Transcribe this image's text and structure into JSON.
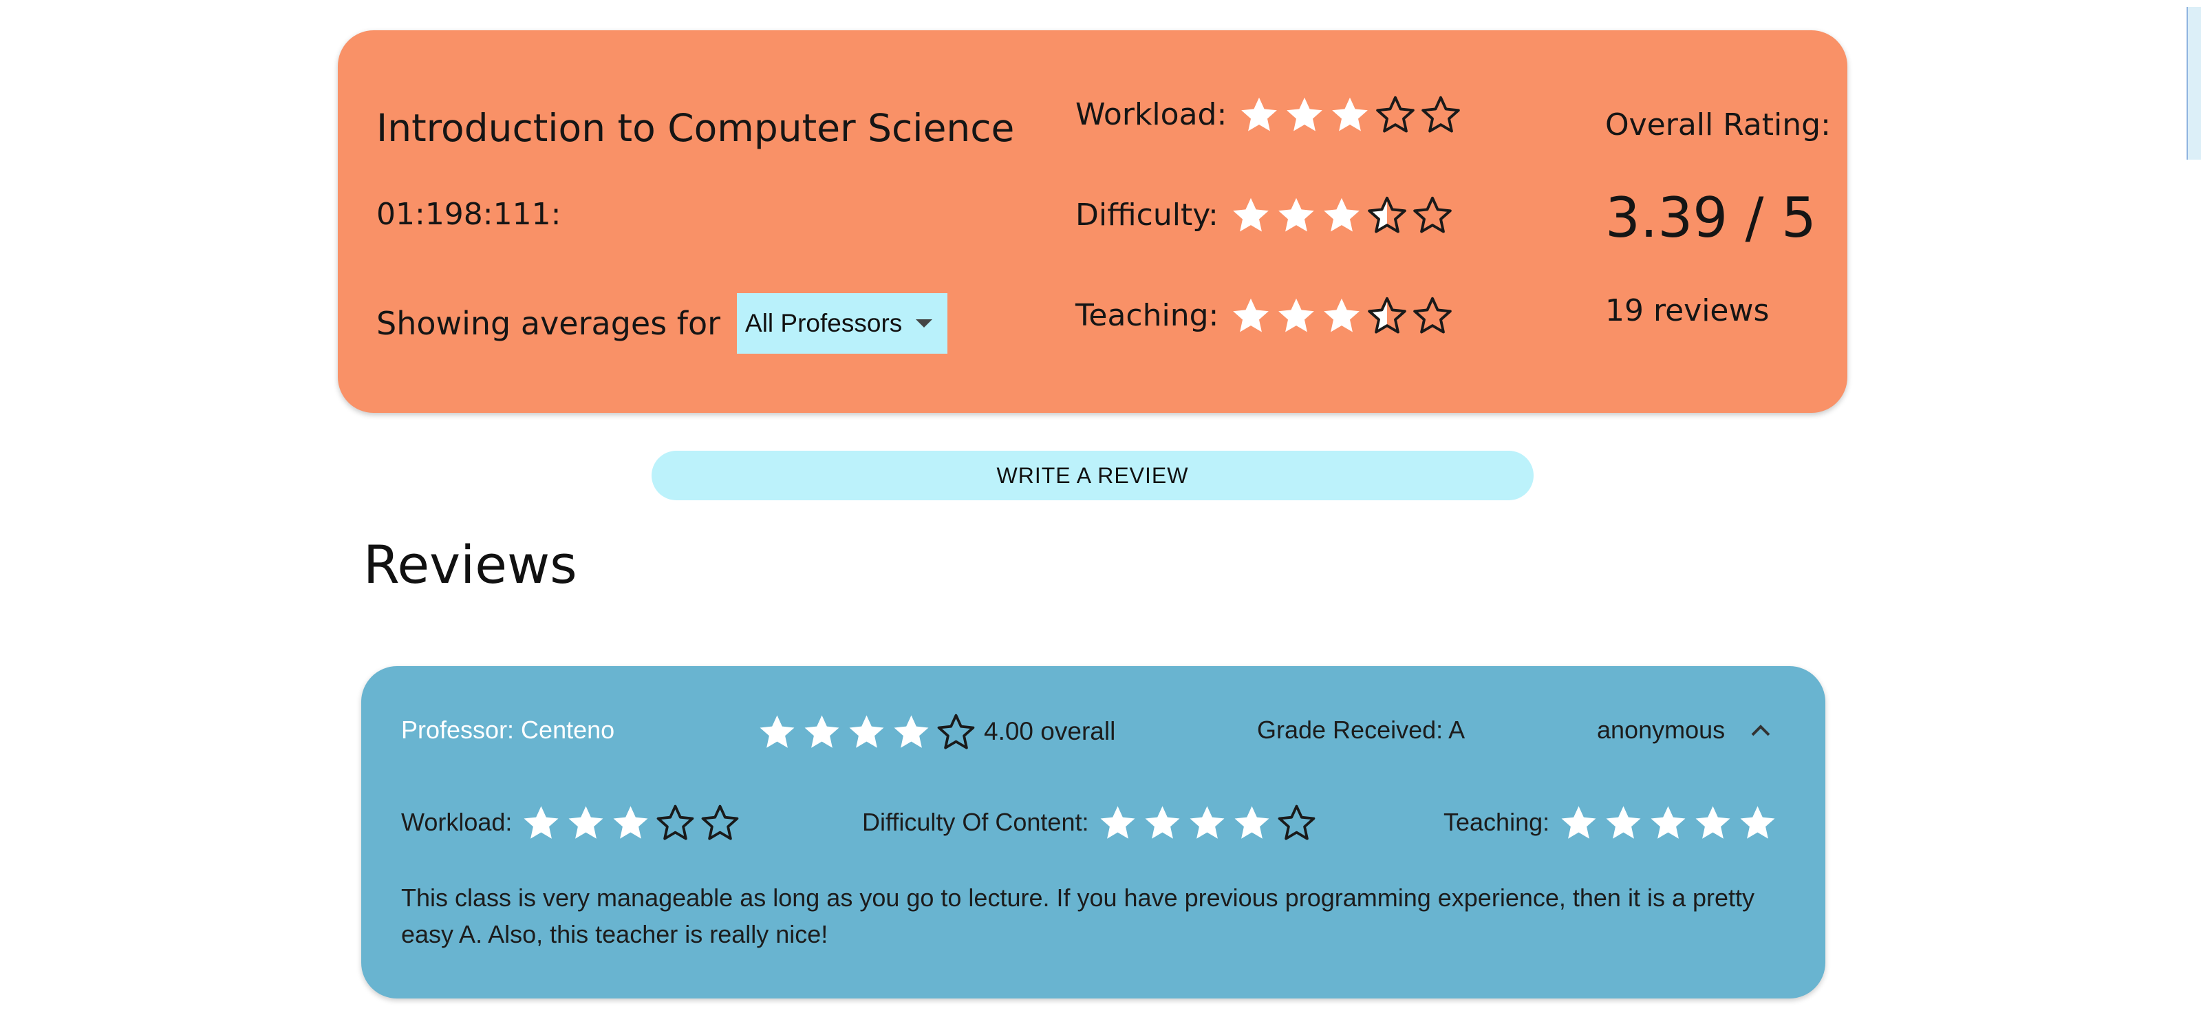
{
  "course": {
    "title": "Introduction to Computer Science",
    "code": "01:198:111:",
    "showing_label": "Showing averages for",
    "professor_select": {
      "selected": "All Professors",
      "icon": "caret-down-icon"
    },
    "metrics": [
      {
        "label": "Workload:",
        "rating": 3,
        "max": 5
      },
      {
        "label": "Difficulty:",
        "rating": 3.5,
        "max": 5
      },
      {
        "label": "Teaching:",
        "rating": 3.5,
        "max": 5
      }
    ],
    "overall_label": "Overall Rating:",
    "overall_value": "3.39 / 5",
    "review_count": "19 reviews"
  },
  "write_review_label": "WRITE A REVIEW",
  "reviews_heading": "Reviews",
  "review": {
    "professor": "Professor: Centeno",
    "overall_rating": 4,
    "overall_text": "4.00 overall",
    "grade": "Grade Received: A",
    "author": "anonymous",
    "collapse_icon": "chevron-up-icon",
    "workload": {
      "label": "Workload:",
      "rating": 3,
      "max": 5
    },
    "difficulty": {
      "label": "Difficulty Of Content:",
      "rating": 4,
      "max": 5
    },
    "teaching": {
      "label": "Teaching:",
      "rating": 5,
      "max": 5
    },
    "text": "This class is very manageable as long as you go to lecture. If you have previous programming experience, then it is a pretty easy A. Also, this teacher is really nice!"
  },
  "colors": {
    "course_card": "#f99167",
    "review_card": "#69b4d0",
    "button": "#bcf2fb",
    "select": "#b9f1fb",
    "star_filled": "#ffffff",
    "star_outline": "#1a1a1a"
  }
}
